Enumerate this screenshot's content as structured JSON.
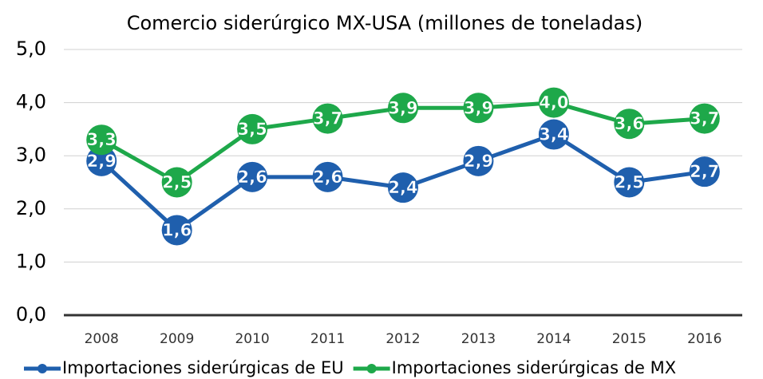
{
  "chart_data": {
    "type": "line",
    "title": "Comercio siderúrgico MX-USA (millones de toneladas)",
    "categories": [
      "2008",
      "2009",
      "2010",
      "2011",
      "2012",
      "2013",
      "2014",
      "2015",
      "2016"
    ],
    "series": [
      {
        "name": "Importaciones siderúrgicas de EU",
        "color": "#1f5fad",
        "values": [
          2.9,
          1.6,
          2.6,
          2.6,
          2.4,
          2.9,
          3.4,
          2.5,
          2.7
        ],
        "value_labels": [
          "2,9",
          "1,6",
          "2,6",
          "2,6",
          "2,4",
          "2,9",
          "3,4",
          "2,5",
          "2,7"
        ]
      },
      {
        "name": "Importaciones siderúrgicas de MX",
        "color": "#1ea84a",
        "values": [
          3.3,
          2.5,
          3.5,
          3.7,
          3.9,
          3.9,
          4.0,
          3.6,
          3.7
        ],
        "value_labels": [
          "3,3",
          "2,5",
          "3,5",
          "3,7",
          "3,9",
          "3,9",
          "4,0",
          "3,6",
          "3,7"
        ]
      }
    ],
    "ylim": [
      0,
      5
    ],
    "yticks": [
      {
        "value": 0,
        "label": "0,0"
      },
      {
        "value": 1,
        "label": "1,0"
      },
      {
        "value": 2,
        "label": "2,0"
      },
      {
        "value": 3,
        "label": "3,0"
      },
      {
        "value": 4,
        "label": "4,0"
      },
      {
        "value": 5,
        "label": "5,0"
      }
    ],
    "grid": true,
    "legend": "bottom"
  }
}
